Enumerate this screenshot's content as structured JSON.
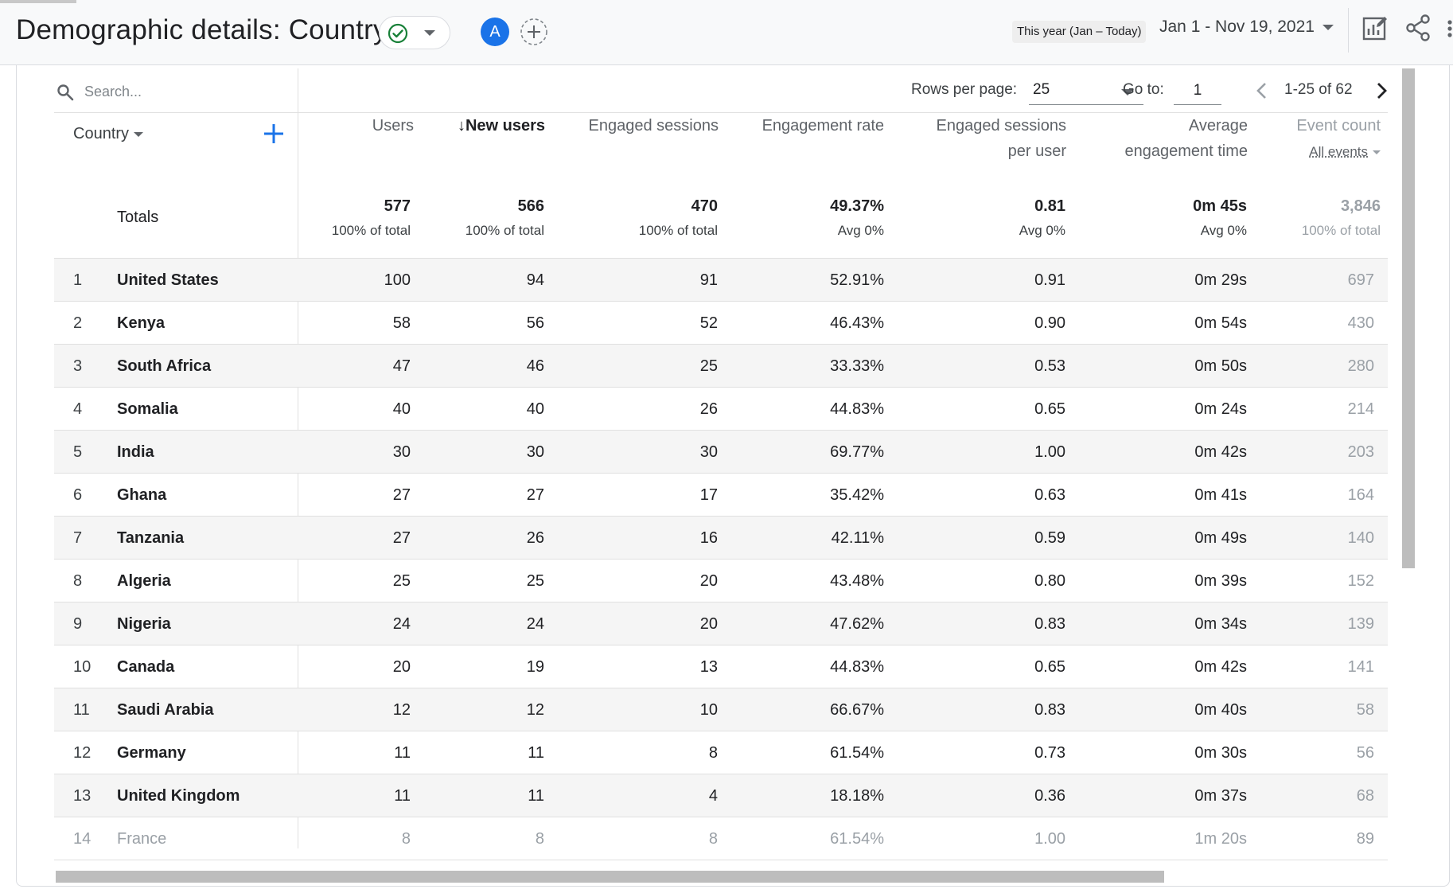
{
  "header": {
    "title": "Demographic details: Country",
    "avatar_letter": "A",
    "date_label": "This year (Jan – Today)",
    "date_range": "Jan 1 - Nov 19, 2021"
  },
  "toolbar": {
    "search_placeholder": "Search...",
    "rows_per_page_label": "Rows per page:",
    "rows_per_page_value": "25",
    "goto_label": "Go to:",
    "goto_value": "1",
    "page_range": "1-25 of 62"
  },
  "table": {
    "dimension_header": "Country",
    "columns": {
      "users": "Users",
      "new_users": "New users",
      "engaged_sessions": "Engaged sessions",
      "engagement_rate": "Engagement rate",
      "sessions_per_user_1": "Engaged sessions",
      "sessions_per_user_2": "per user",
      "avg_time_1": "Average",
      "avg_time_2": "engagement time",
      "event_count": "Event count",
      "event_filter": "All events"
    },
    "totals": {
      "label": "Totals",
      "users": "577",
      "users_sub": "100% of total",
      "new_users": "566",
      "new_users_sub": "100% of total",
      "engaged_sessions": "470",
      "engaged_sessions_sub": "100% of total",
      "engagement_rate": "49.37%",
      "engagement_rate_sub": "Avg 0%",
      "sessions_per_user": "0.81",
      "sessions_per_user_sub": "Avg 0%",
      "avg_time": "0m 45s",
      "avg_time_sub": "Avg 0%",
      "event_count": "3,846",
      "event_count_sub": "100% of total"
    },
    "rows": [
      {
        "idx": "1",
        "country": "United States",
        "users": "100",
        "new_users": "94",
        "engaged": "91",
        "rate": "52.91%",
        "per_user": "0.91",
        "time": "0m 29s",
        "events": "697"
      },
      {
        "idx": "2",
        "country": "Kenya",
        "users": "58",
        "new_users": "56",
        "engaged": "52",
        "rate": "46.43%",
        "per_user": "0.90",
        "time": "0m 54s",
        "events": "430"
      },
      {
        "idx": "3",
        "country": "South Africa",
        "users": "47",
        "new_users": "46",
        "engaged": "25",
        "rate": "33.33%",
        "per_user": "0.53",
        "time": "0m 50s",
        "events": "280"
      },
      {
        "idx": "4",
        "country": "Somalia",
        "users": "40",
        "new_users": "40",
        "engaged": "26",
        "rate": "44.83%",
        "per_user": "0.65",
        "time": "0m 24s",
        "events": "214"
      },
      {
        "idx": "5",
        "country": "India",
        "users": "30",
        "new_users": "30",
        "engaged": "30",
        "rate": "69.77%",
        "per_user": "1.00",
        "time": "0m 42s",
        "events": "203"
      },
      {
        "idx": "6",
        "country": "Ghana",
        "users": "27",
        "new_users": "27",
        "engaged": "17",
        "rate": "35.42%",
        "per_user": "0.63",
        "time": "0m 41s",
        "events": "164"
      },
      {
        "idx": "7",
        "country": "Tanzania",
        "users": "27",
        "new_users": "26",
        "engaged": "16",
        "rate": "42.11%",
        "per_user": "0.59",
        "time": "0m 49s",
        "events": "140"
      },
      {
        "idx": "8",
        "country": "Algeria",
        "users": "25",
        "new_users": "25",
        "engaged": "20",
        "rate": "43.48%",
        "per_user": "0.80",
        "time": "0m 39s",
        "events": "152"
      },
      {
        "idx": "9",
        "country": "Nigeria",
        "users": "24",
        "new_users": "24",
        "engaged": "20",
        "rate": "47.62%",
        "per_user": "0.83",
        "time": "0m 34s",
        "events": "139"
      },
      {
        "idx": "10",
        "country": "Canada",
        "users": "20",
        "new_users": "19",
        "engaged": "13",
        "rate": "44.83%",
        "per_user": "0.65",
        "time": "0m 42s",
        "events": "141"
      },
      {
        "idx": "11",
        "country": "Saudi Arabia",
        "users": "12",
        "new_users": "12",
        "engaged": "10",
        "rate": "66.67%",
        "per_user": "0.83",
        "time": "0m 40s",
        "events": "58"
      },
      {
        "idx": "12",
        "country": "Germany",
        "users": "11",
        "new_users": "11",
        "engaged": "8",
        "rate": "61.54%",
        "per_user": "0.73",
        "time": "0m 30s",
        "events": "56"
      },
      {
        "idx": "13",
        "country": "United Kingdom",
        "users": "11",
        "new_users": "11",
        "engaged": "4",
        "rate": "18.18%",
        "per_user": "0.36",
        "time": "0m 37s",
        "events": "68"
      },
      {
        "idx": "14",
        "country": "France",
        "users": "8",
        "new_users": "8",
        "engaged": "8",
        "rate": "61.54%",
        "per_user": "1.00",
        "time": "1m 20s",
        "events": "89"
      }
    ]
  },
  "colors": {
    "accent": "#1a73e8",
    "success": "#188038",
    "header_bg": "#f8f9fa",
    "row_shade": "#f5f5f5"
  },
  "icons": [
    "check-circle-icon",
    "chevron-down-icon",
    "add-circle-icon",
    "customize-report-icon",
    "share-icon",
    "more-vert-icon",
    "search-icon",
    "chevron-left-icon",
    "chevron-right-icon",
    "plus-icon",
    "sort-down-arrow-icon"
  ]
}
